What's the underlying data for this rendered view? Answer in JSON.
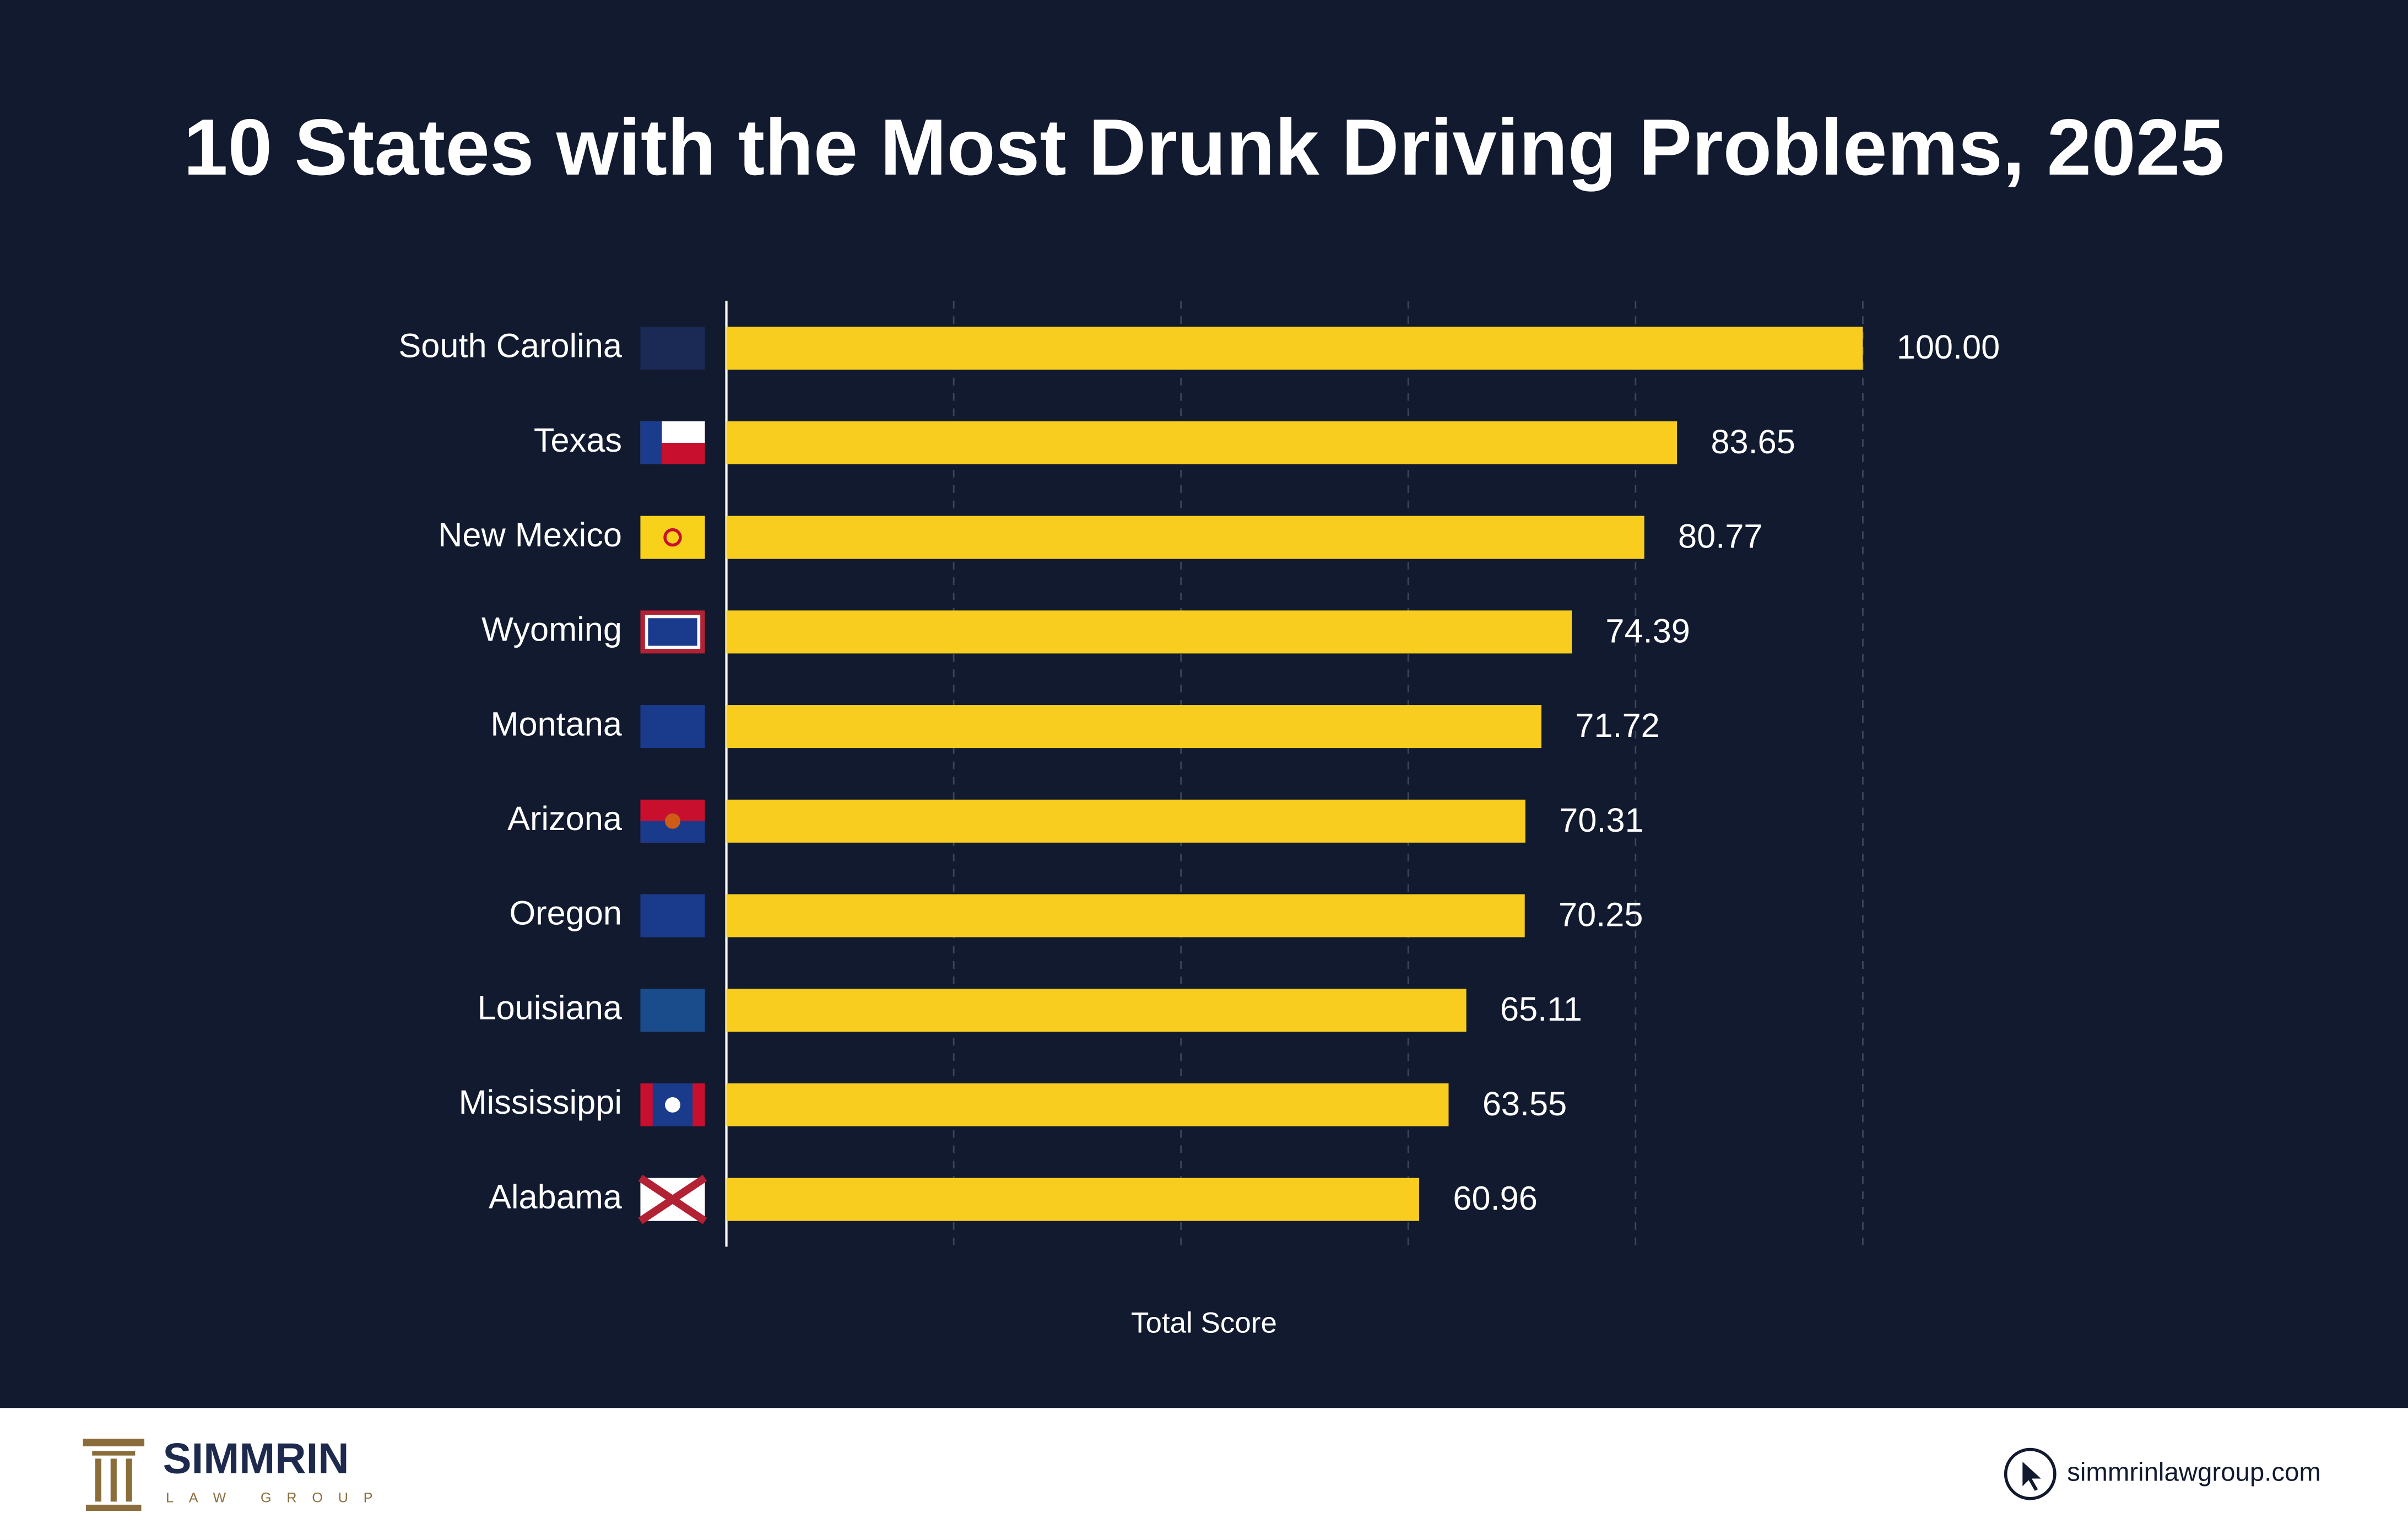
{
  "chart_data": {
    "type": "bar",
    "orientation": "horizontal",
    "title": "10 States with the Most Drunk Driving Problems, 2025",
    "x_label": "Total Score",
    "categories": [
      "South Carolina",
      "Texas",
      "New Mexico",
      "Wyoming",
      "Montana",
      "Arizona",
      "Oregon",
      "Louisiana",
      "Mississippi",
      "Alabama"
    ],
    "values": [
      100.0,
      83.65,
      80.77,
      74.39,
      71.72,
      70.31,
      70.25,
      65.11,
      63.55,
      60.96
    ],
    "value_labels": [
      "100.00",
      "83.65",
      "80.77",
      "74.39",
      "71.72",
      "70.31",
      "70.25",
      "65.11",
      "63.55",
      "60.96"
    ],
    "color": "#f8cd1f",
    "xlim": [
      0,
      100
    ],
    "xticks": [
      20,
      40,
      60,
      80,
      100
    ],
    "grid": true
  },
  "footer": {
    "brand": "SIMMRIN",
    "brand_sub": "LAW GROUP",
    "website": "simmrinlawgroup.com"
  }
}
